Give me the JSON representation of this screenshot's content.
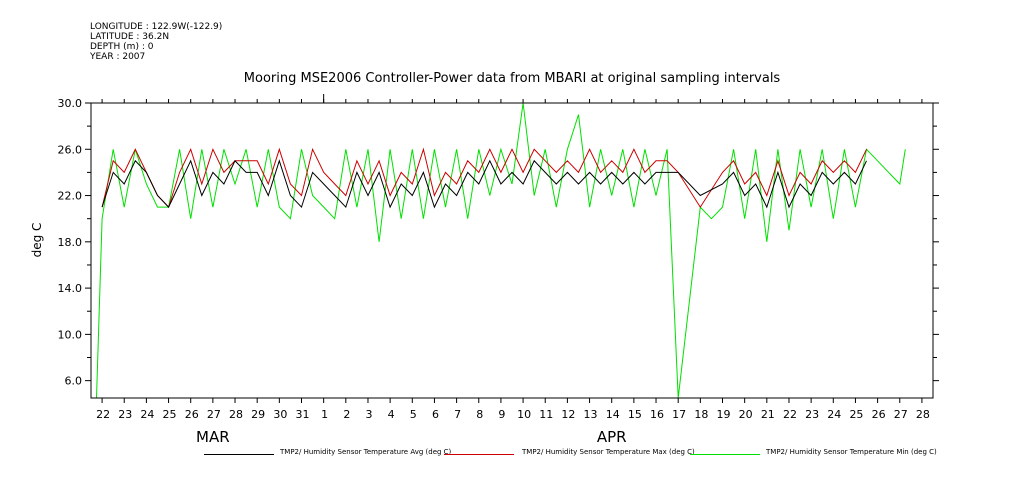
{
  "meta": {
    "longitude": "LONGITUDE : 122.9W(-122.9)",
    "latitude": "LATITUDE : 36.2N",
    "depth": "DEPTH (m) : 0",
    "year": "YEAR : 2007"
  },
  "colors": {
    "avg": "#000000",
    "max": "#cc0000",
    "min": "#00e000"
  },
  "chart_data": {
    "type": "line",
    "title": "Mooring MSE2006 Controller-Power data from MBARI at original sampling intervals",
    "ylabel": "deg C",
    "xlabel": "",
    "ylim": [
      4.5,
      30.0
    ],
    "yticks": [
      6.0,
      10.0,
      14.0,
      18.0,
      22.0,
      26.0,
      30.0
    ],
    "ytick_labels": [
      "6.0",
      "10.0",
      "14.0",
      "18.0",
      "22.0",
      "26.0",
      "30.0"
    ],
    "xlim": [
      "2007-03-21T12:00",
      "2007-04-28T12:00"
    ],
    "xtick_labels": [
      "22",
      "23",
      "24",
      "25",
      "26",
      "27",
      "28",
      "29",
      "30",
      "31",
      "1",
      "2",
      "3",
      "4",
      "5",
      "6",
      "7",
      "8",
      "9",
      "10",
      "11",
      "12",
      "13",
      "14",
      "15",
      "16",
      "17",
      "18",
      "19",
      "20",
      "21",
      "22",
      "23",
      "24",
      "25",
      "26",
      "27",
      "28"
    ],
    "month_labels": [
      {
        "label": "MAR",
        "date": "2007-03-27"
      },
      {
        "label": "APR",
        "date": "2007-04-14"
      }
    ],
    "legend_placement": "bottom",
    "series": [
      {
        "name": "TMP2/ Humidity Sensor Temperature Avg (deg C)",
        "x": [
          "2007-03-22T00:00",
          "2007-03-22T12:00",
          "2007-03-23T00:00",
          "2007-03-23T12:00",
          "2007-03-24T00:00",
          "2007-03-24T12:00",
          "2007-03-25T00:00",
          "2007-03-25T12:00",
          "2007-03-26T00:00",
          "2007-03-26T12:00",
          "2007-03-27T00:00",
          "2007-03-27T12:00",
          "2007-03-28T00:00",
          "2007-03-28T12:00",
          "2007-03-29T00:00",
          "2007-03-29T12:00",
          "2007-03-30T00:00",
          "2007-03-30T12:00",
          "2007-03-31T00:00",
          "2007-03-31T12:00",
          "2007-04-01T00:00",
          "2007-04-01T12:00",
          "2007-04-02T00:00",
          "2007-04-02T12:00",
          "2007-04-03T00:00",
          "2007-04-03T12:00",
          "2007-04-04T00:00",
          "2007-04-04T12:00",
          "2007-04-05T00:00",
          "2007-04-05T12:00",
          "2007-04-06T00:00",
          "2007-04-06T12:00",
          "2007-04-07T00:00",
          "2007-04-07T12:00",
          "2007-04-08T00:00",
          "2007-04-08T12:00",
          "2007-04-09T00:00",
          "2007-04-09T12:00",
          "2007-04-10T00:00",
          "2007-04-10T12:00",
          "2007-04-11T00:00",
          "2007-04-11T12:00",
          "2007-04-12T00:00",
          "2007-04-12T12:00",
          "2007-04-13T00:00",
          "2007-04-13T12:00",
          "2007-04-14T00:00",
          "2007-04-14T12:00",
          "2007-04-15T00:00",
          "2007-04-15T12:00",
          "2007-04-16T00:00",
          "2007-04-16T12:00",
          "2007-04-17T00:00",
          "2007-04-18T00:00",
          "2007-04-19T00:00",
          "2007-04-19T12:00",
          "2007-04-20T00:00",
          "2007-04-20T12:00",
          "2007-04-21T00:00",
          "2007-04-21T12:00",
          "2007-04-22T00:00",
          "2007-04-22T12:00",
          "2007-04-23T00:00",
          "2007-04-23T12:00",
          "2007-04-24T00:00",
          "2007-04-24T12:00",
          "2007-04-25T00:00",
          "2007-04-25T12:00"
        ],
        "y": [
          21,
          24,
          23,
          25,
          24,
          22,
          21,
          23,
          25,
          22,
          24,
          23,
          25,
          24,
          24,
          22,
          25,
          22,
          21,
          24,
          23,
          22,
          21,
          24,
          22,
          24,
          21,
          23,
          22,
          24,
          21,
          23,
          22,
          24,
          23,
          25,
          23,
          24,
          23,
          25,
          24,
          23,
          24,
          23,
          24,
          23,
          24,
          23,
          24,
          23,
          24,
          24,
          24,
          22,
          23,
          24,
          22,
          23,
          21,
          24,
          21,
          23,
          22,
          24,
          23,
          24,
          23,
          25
        ]
      },
      {
        "name": "TMP2/ Humidity Sensor Temperature Max (deg C)",
        "x": [
          "2007-03-22T00:00",
          "2007-03-22T12:00",
          "2007-03-23T00:00",
          "2007-03-23T12:00",
          "2007-03-24T00:00",
          "2007-03-24T12:00",
          "2007-03-25T00:00",
          "2007-03-25T12:00",
          "2007-03-26T00:00",
          "2007-03-26T12:00",
          "2007-03-27T00:00",
          "2007-03-27T12:00",
          "2007-03-28T00:00",
          "2007-03-28T12:00",
          "2007-03-29T00:00",
          "2007-03-29T12:00",
          "2007-03-30T00:00",
          "2007-03-30T12:00",
          "2007-03-31T00:00",
          "2007-03-31T12:00",
          "2007-04-01T00:00",
          "2007-04-01T12:00",
          "2007-04-02T00:00",
          "2007-04-02T12:00",
          "2007-04-03T00:00",
          "2007-04-03T12:00",
          "2007-04-04T00:00",
          "2007-04-04T12:00",
          "2007-04-05T00:00",
          "2007-04-05T12:00",
          "2007-04-06T00:00",
          "2007-04-06T12:00",
          "2007-04-07T00:00",
          "2007-04-07T12:00",
          "2007-04-08T00:00",
          "2007-04-08T12:00",
          "2007-04-09T00:00",
          "2007-04-09T12:00",
          "2007-04-10T00:00",
          "2007-04-10T12:00",
          "2007-04-11T00:00",
          "2007-04-11T12:00",
          "2007-04-12T00:00",
          "2007-04-12T12:00",
          "2007-04-13T00:00",
          "2007-04-13T12:00",
          "2007-04-14T00:00",
          "2007-04-14T12:00",
          "2007-04-15T00:00",
          "2007-04-15T12:00",
          "2007-04-16T00:00",
          "2007-04-16T12:00",
          "2007-04-17T00:00",
          "2007-04-18T00:00",
          "2007-04-19T00:00",
          "2007-04-19T12:00",
          "2007-04-20T00:00",
          "2007-04-20T12:00",
          "2007-04-21T00:00",
          "2007-04-21T12:00",
          "2007-04-22T00:00",
          "2007-04-22T12:00",
          "2007-04-23T00:00",
          "2007-04-23T12:00",
          "2007-04-24T00:00",
          "2007-04-24T12:00",
          "2007-04-25T00:00",
          "2007-04-25T12:00"
        ],
        "y": [
          21,
          25,
          24,
          26,
          24,
          22,
          21,
          24,
          26,
          23,
          26,
          24,
          25,
          25,
          25,
          23,
          26,
          23,
          22,
          26,
          24,
          23,
          22,
          25,
          23,
          25,
          22,
          24,
          23,
          26,
          22,
          24,
          23,
          25,
          24,
          26,
          24,
          26,
          24,
          26,
          25,
          24,
          25,
          24,
          26,
          24,
          25,
          24,
          26,
          24,
          25,
          25,
          24,
          21,
          24,
          25,
          23,
          24,
          22,
          25,
          22,
          24,
          23,
          25,
          24,
          25,
          24,
          26
        ]
      },
      {
        "name": "TMP2/ Humidity Sensor Temperature Min (deg C)",
        "x": [
          "2007-03-21T18:00",
          "2007-03-22T00:00",
          "2007-03-22T12:00",
          "2007-03-23T00:00",
          "2007-03-23T12:00",
          "2007-03-24T00:00",
          "2007-03-24T12:00",
          "2007-03-25T00:00",
          "2007-03-25T12:00",
          "2007-03-26T00:00",
          "2007-03-26T12:00",
          "2007-03-27T00:00",
          "2007-03-27T12:00",
          "2007-03-28T00:00",
          "2007-03-28T12:00",
          "2007-03-29T00:00",
          "2007-03-29T12:00",
          "2007-03-30T00:00",
          "2007-03-30T12:00",
          "2007-03-31T00:00",
          "2007-03-31T12:00",
          "2007-04-01T00:00",
          "2007-04-01T12:00",
          "2007-04-02T00:00",
          "2007-04-02T12:00",
          "2007-04-03T00:00",
          "2007-04-03T12:00",
          "2007-04-04T00:00",
          "2007-04-04T12:00",
          "2007-04-05T00:00",
          "2007-04-05T12:00",
          "2007-04-06T00:00",
          "2007-04-06T12:00",
          "2007-04-07T00:00",
          "2007-04-07T12:00",
          "2007-04-08T00:00",
          "2007-04-08T12:00",
          "2007-04-09T00:00",
          "2007-04-09T12:00",
          "2007-04-10T00:00",
          "2007-04-10T12:00",
          "2007-04-11T00:00",
          "2007-04-11T12:00",
          "2007-04-12T00:00",
          "2007-04-12T12:00",
          "2007-04-13T00:00",
          "2007-04-13T12:00",
          "2007-04-14T00:00",
          "2007-04-14T12:00",
          "2007-04-15T00:00",
          "2007-04-15T12:00",
          "2007-04-16T00:00",
          "2007-04-16T12:00",
          "2007-04-17T00:00",
          "2007-04-18T00:00",
          "2007-04-18T12:00",
          "2007-04-19T00:00",
          "2007-04-19T12:00",
          "2007-04-20T00:00",
          "2007-04-20T12:00",
          "2007-04-21T00:00",
          "2007-04-21T12:00",
          "2007-04-22T00:00",
          "2007-04-22T12:00",
          "2007-04-23T00:00",
          "2007-04-23T12:00",
          "2007-04-24T00:00",
          "2007-04-24T12:00",
          "2007-04-25T00:00",
          "2007-04-25T12:00",
          "2007-04-27T00:00",
          "2007-04-27T06:00"
        ],
        "y": [
          4.5,
          20,
          26,
          21,
          26,
          23,
          21,
          21,
          26,
          20,
          26,
          21,
          26,
          23,
          26,
          21,
          26,
          21,
          20,
          26,
          22,
          21,
          20,
          26,
          21,
          26,
          18,
          26,
          20,
          26,
          20,
          26,
          21,
          26,
          20,
          26,
          22,
          26,
          23,
          30,
          22,
          26,
          21,
          26,
          29,
          21,
          26,
          22,
          26,
          21,
          26,
          22,
          26,
          4.5,
          21,
          20,
          21,
          26,
          20,
          26,
          18,
          26,
          19,
          26,
          21,
          26,
          20,
          26,
          21,
          26,
          23,
          26
        ]
      }
    ]
  },
  "legend": {
    "items": [
      {
        "label": "TMP2/ Humidity Sensor Temperature Avg (deg C)"
      },
      {
        "label": "TMP2/ Humidity Sensor Temperature Max (deg C)"
      },
      {
        "label": "TMP2/ Humidity Sensor Temperature Min (deg C)"
      }
    ]
  }
}
